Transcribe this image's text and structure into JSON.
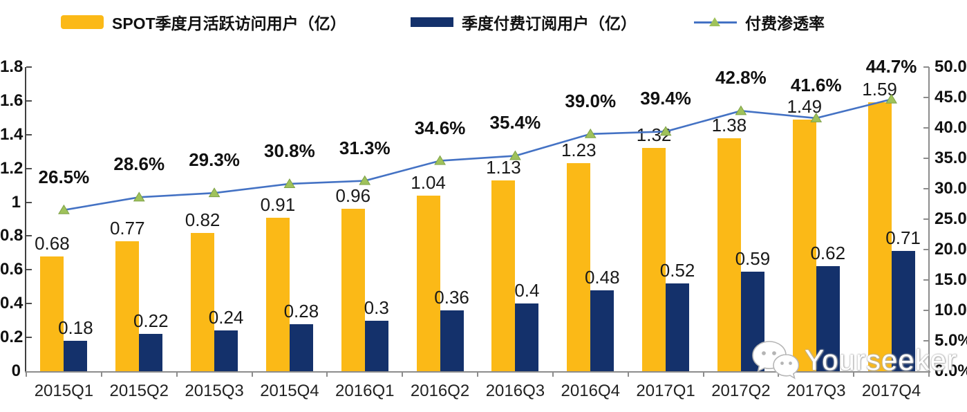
{
  "legend": [
    {
      "label": "SPOT季度月活跃访问用户（亿）",
      "swatch": "bar",
      "color": "#FBB917"
    },
    {
      "label": "季度付费订阅用户（亿）",
      "swatch": "bar",
      "color": "#14316B"
    },
    {
      "label": "付费渗透率",
      "swatch": "line-marker",
      "line_color": "#4472C4",
      "marker_color": "#9FC25B"
    }
  ],
  "chart_data": {
    "type": "combo",
    "categories": [
      "2015Q1",
      "2015Q2",
      "2015Q3",
      "2015Q4",
      "2016Q1",
      "2016Q2",
      "2016Q3",
      "2016Q4",
      "2017Q1",
      "2017Q2",
      "2017Q3",
      "2017Q4"
    ],
    "series": [
      {
        "name": "SPOT季度月活跃访问用户（亿）",
        "type": "bar",
        "axis": "left",
        "color": "#FBB917",
        "values": [
          0.68,
          0.77,
          0.82,
          0.91,
          0.96,
          1.04,
          1.13,
          1.23,
          1.32,
          1.38,
          1.49,
          1.59
        ],
        "labels": [
          "0.68",
          "0.77",
          "0.82",
          "0.91",
          "0.96",
          "1.04",
          "1.13",
          "1.23",
          "1.32",
          "1.38",
          "1.49",
          "1.59"
        ]
      },
      {
        "name": "季度付费订阅用户（亿）",
        "type": "bar",
        "axis": "left",
        "color": "#14316B",
        "values": [
          0.18,
          0.22,
          0.24,
          0.28,
          0.3,
          0.36,
          0.4,
          0.48,
          0.52,
          0.59,
          0.62,
          0.71
        ],
        "labels": [
          "0.18",
          "0.22",
          "0.24",
          "0.28",
          "0.3",
          "0.36",
          "0.4",
          "0.48",
          "0.52",
          "0.59",
          "0.62",
          "0.71"
        ]
      },
      {
        "name": "付费渗透率",
        "type": "line",
        "axis": "right",
        "color": "#4472C4",
        "marker": "triangle",
        "marker_color": "#9FC25B",
        "marker_edge_color": "#7EA147",
        "values": [
          26.5,
          28.6,
          29.3,
          30.8,
          31.3,
          34.6,
          35.4,
          39.0,
          39.4,
          42.8,
          41.6,
          44.7
        ],
        "labels": [
          "26.5%",
          "28.6%",
          "29.3%",
          "30.8%",
          "31.3%",
          "34.6%",
          "35.4%",
          "39.0%",
          "39.4%",
          "42.8%",
          "41.6%",
          "44.7%"
        ]
      }
    ],
    "left_axis": {
      "min": 0,
      "max": 1.8,
      "step": 0.2,
      "ticks": [
        "0",
        "0.2",
        "0.4",
        "0.6",
        "0.8",
        "1",
        "1.2",
        "1.4",
        "1.6",
        "1.8"
      ]
    },
    "right_axis": {
      "min": 0,
      "max": 50,
      "step": 5,
      "ticks": [
        "0.0%",
        "5.0%",
        "10.0%",
        "15.0%",
        "20.0%",
        "25.0%",
        "30.0%",
        "35.0%",
        "40.0%",
        "45.0%",
        "50.0%"
      ]
    },
    "grid": false,
    "legend_position": "top"
  },
  "watermark": {
    "text": "Yourseeker",
    "icon": "wechat-icon"
  }
}
